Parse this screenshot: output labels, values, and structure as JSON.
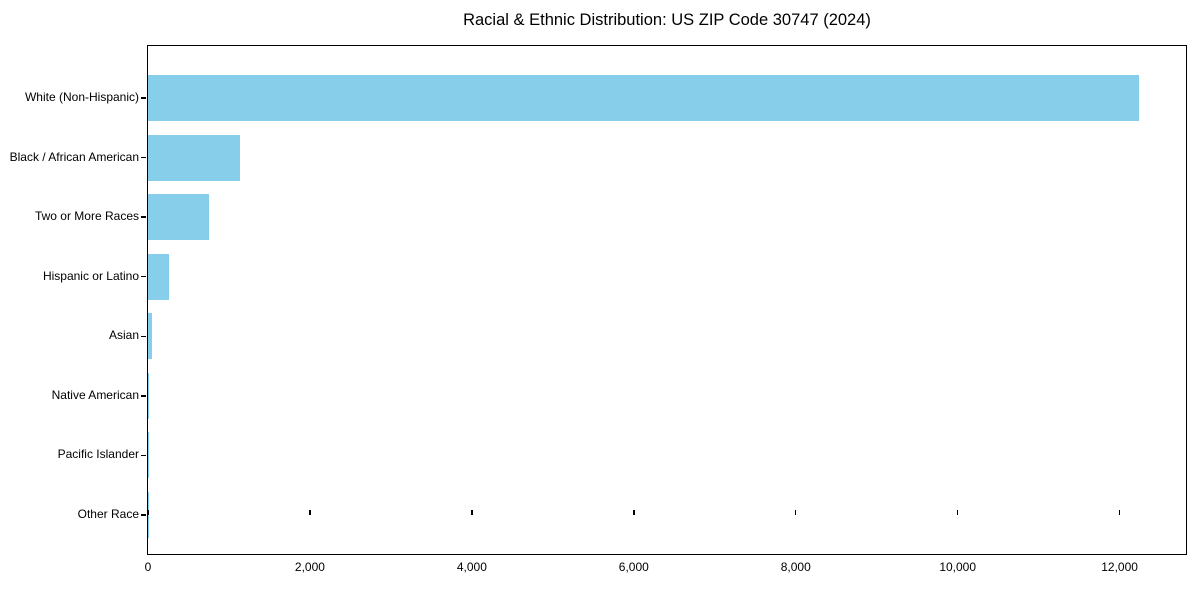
{
  "chart_data": {
    "type": "bar",
    "orientation": "horizontal",
    "title": "Racial & Ethnic Distribution: US ZIP Code 30747 (2024)",
    "categories": [
      "White (Non-Hispanic)",
      "Black / African American",
      "Two or More Races",
      "Hispanic or Latino",
      "Asian",
      "Native American",
      "Pacific Islander",
      "Other Race"
    ],
    "values": [
      12240,
      1145,
      755,
      270,
      55,
      12,
      3,
      6
    ],
    "xlabel": "",
    "ylabel": "",
    "xlim": [
      0,
      12820
    ],
    "xticks": [
      0,
      2000,
      4000,
      6000,
      8000,
      10000,
      12000
    ],
    "xtick_labels": [
      "0",
      "2,000",
      "4,000",
      "6,000",
      "8,000",
      "10,000",
      "12,000"
    ],
    "bar_color": "#87CEEB",
    "text_color": "#000000",
    "grid": false,
    "legend": "none"
  }
}
